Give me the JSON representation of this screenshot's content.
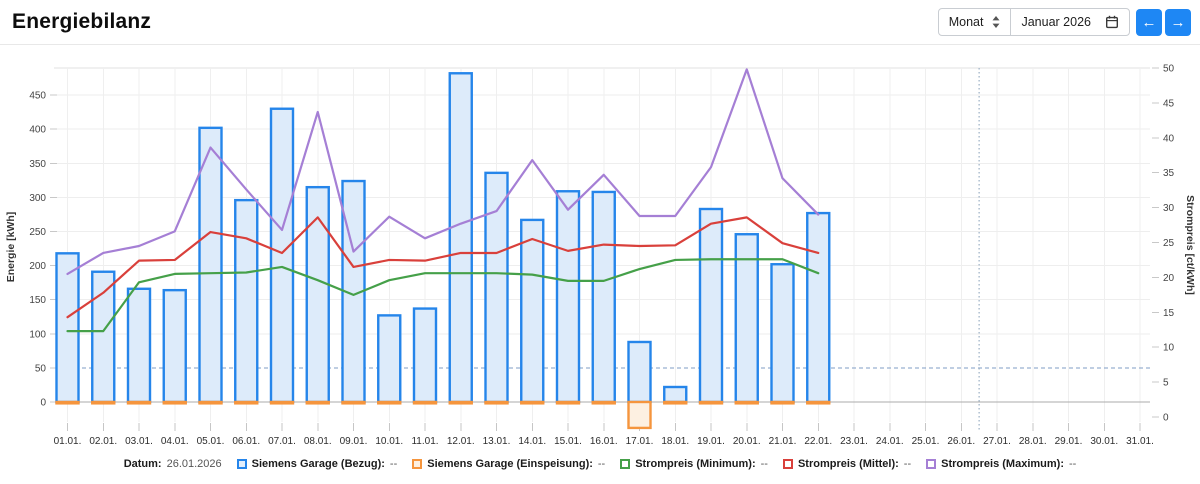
{
  "header": {
    "title": "Energiebilanz",
    "period_select": {
      "value": "Monat"
    },
    "date_picker": {
      "value": "Januar 2026"
    },
    "icons": {
      "prev": "←",
      "next": "→",
      "updown": "sort-updown-icon",
      "calendar": "calendar-icon"
    },
    "accent_color": "#1e87f4"
  },
  "legend": {
    "datum_label": "Datum:",
    "datum_value": "26.01.2026",
    "items": [
      {
        "label": "Siemens Garage (Bezug):",
        "value": "--",
        "color": "#2585ea",
        "fill": "#e3effc"
      },
      {
        "label": "Siemens Garage (Einspeisung):",
        "value": "--",
        "color": "#f5953d",
        "fill": "#fdf0e1"
      },
      {
        "label": "Strompreis (Minimum):",
        "value": "--",
        "color": "#45a049",
        "fill": "#ffffff"
      },
      {
        "label": "Strompreis (Mittel):",
        "value": "--",
        "color": "#d9403b",
        "fill": "#ffffff"
      },
      {
        "label": "Strompreis (Maximum):",
        "value": "--",
        "color": "#a57fd5",
        "fill": "#ffffff"
      }
    ]
  },
  "chart_data": {
    "type": "mixed-bar-line",
    "categories": [
      "01.01.",
      "02.01.",
      "03.01.",
      "04.01.",
      "05.01.",
      "06.01.",
      "07.01.",
      "08.01.",
      "09.01.",
      "10.01.",
      "11.01.",
      "12.01.",
      "13.01.",
      "14.01.",
      "15.01.",
      "16.01.",
      "17.01.",
      "18.01.",
      "19.01.",
      "20.01.",
      "21.01.",
      "22.01.",
      "23.01.",
      "24.01.",
      "25.01.",
      "26.01.",
      "27.01.",
      "28.01.",
      "29.01.",
      "30.01.",
      "31.01."
    ],
    "series": [
      {
        "name": "Siemens Garage (Bezug)",
        "type": "bar",
        "axis": "energy",
        "color": "#2585ea",
        "fill": "#ddebfa",
        "values": [
          218,
          191,
          166,
          164,
          402,
          296,
          430,
          315,
          324,
          127,
          137,
          482,
          336,
          267,
          309,
          308,
          88,
          22,
          283,
          246,
          202,
          277,
          null,
          null,
          null,
          null,
          null,
          null,
          null,
          null,
          null
        ]
      },
      {
        "name": "Siemens Garage (Einspeisung)",
        "type": "bar",
        "axis": "energy",
        "color": "#f5953d",
        "fill": "#fdf0e1",
        "values": [
          -2,
          -2,
          -2,
          -2,
          -2,
          -2,
          -2,
          -2,
          -2,
          -2,
          -2,
          -2,
          -2,
          -2,
          -2,
          -2,
          -38,
          -2,
          -2,
          -2,
          -2,
          -2,
          null,
          null,
          null,
          null,
          null,
          null,
          null,
          null,
          null
        ]
      },
      {
        "name": "Strompreis (Minimum)",
        "type": "line",
        "axis": "price",
        "color": "#45a049",
        "values": [
          12.3,
          12.3,
          19.3,
          20.5,
          20.6,
          20.7,
          21.5,
          19.6,
          17.5,
          19.6,
          20.6,
          20.6,
          20.6,
          20.4,
          19.5,
          19.5,
          21.2,
          22.5,
          22.6,
          22.6,
          22.6,
          20.6,
          null,
          null,
          null,
          null,
          null,
          null,
          null,
          null,
          null
        ]
      },
      {
        "name": "Strompreis (Mittel)",
        "type": "line",
        "axis": "price",
        "color": "#d9403b",
        "values": [
          14.3,
          17.8,
          22.4,
          22.5,
          26.5,
          25.6,
          23.5,
          28.6,
          21.5,
          22.5,
          22.4,
          23.5,
          23.5,
          25.5,
          23.8,
          24.7,
          24.5,
          24.6,
          27.7,
          28.6,
          24.9,
          23.5,
          null,
          null,
          null,
          null,
          null,
          null,
          null,
          null,
          null
        ]
      },
      {
        "name": "Strompreis (Maximum)",
        "type": "line",
        "axis": "price",
        "color": "#a57fd5",
        "values": [
          20.5,
          23.5,
          24.5,
          26.6,
          38.6,
          32.6,
          26.8,
          43.7,
          23.7,
          28.7,
          25.6,
          27.7,
          29.5,
          36.8,
          29.7,
          34.7,
          28.8,
          28.8,
          35.8,
          49.8,
          34.2,
          29.0,
          null,
          null,
          null,
          null,
          null,
          null,
          null,
          null,
          null
        ]
      }
    ],
    "y_left": {
      "title": "Energie [kWh]",
      "ticks": [
        0,
        50,
        100,
        150,
        200,
        250,
        300,
        350,
        400,
        450
      ],
      "max": 450
    },
    "y_right": {
      "title": "Strompreis [ct/kWh]",
      "ticks": [
        0,
        5,
        10,
        15,
        20,
        25,
        30,
        35,
        40,
        45,
        50
      ],
      "max": 50
    },
    "reference_lines": {
      "feed_in_price_dashed": 7.0,
      "today_marker_after_day": 26
    },
    "grid": true,
    "legend_position": "bottom"
  }
}
